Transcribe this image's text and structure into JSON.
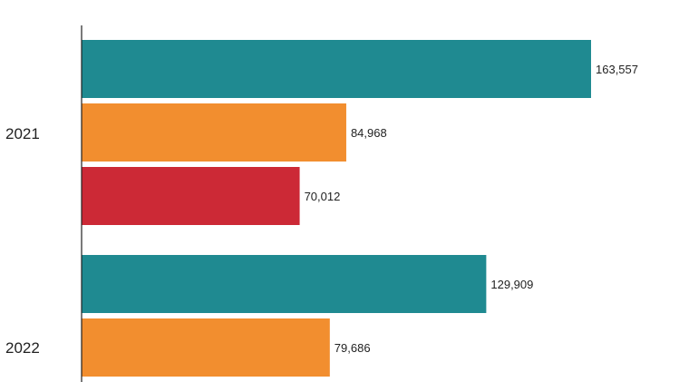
{
  "chart_data": {
    "type": "bar",
    "orientation": "horizontal",
    "title": "",
    "xlabel": "",
    "ylabel": "",
    "categories": [
      "2021",
      "2022"
    ],
    "series": [
      {
        "values": [
          163557,
          129909
        ],
        "color": "#1f8a91",
        "labels": [
          "163,557",
          "129,909"
        ]
      },
      {
        "values": [
          84968,
          79686
        ],
        "color": "#f28e2f",
        "labels": [
          "84,968",
          "79,686"
        ]
      },
      {
        "values": [
          70012,
          null
        ],
        "color": "#cc2936",
        "labels": [
          "70,012",
          ""
        ]
      }
    ],
    "xlim": [
      0,
      200000
    ],
    "grid": false,
    "legend": "none"
  }
}
